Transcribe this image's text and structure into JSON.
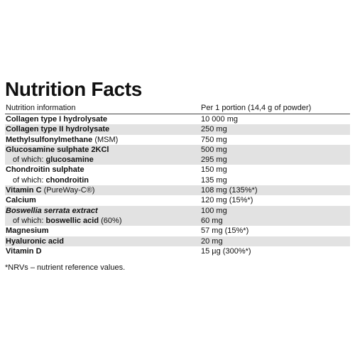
{
  "title": "Nutrition Facts",
  "header": [
    "Nutrition information",
    "Per 1 portion (14,4 g of powder)"
  ],
  "rows": [
    {
      "name": [
        "Collagen type I hydrolysate"
      ],
      "amount": "10 000 mg"
    },
    {
      "name": [
        "Collagen type II hydrolysate"
      ],
      "amount": "250 mg"
    },
    {
      "name": [
        "Methylsulfonylmethane",
        "(MSM)"
      ],
      "amount": "750 mg"
    },
    {
      "name": [
        "Glucosamine sulphate 2KCl"
      ],
      "amount": "500 mg"
    },
    {
      "name": [
        "of which:",
        "glucosamine"
      ],
      "amount": "295 mg"
    },
    {
      "name": [
        "Chondroitin sulphate"
      ],
      "amount": "150 mg"
    },
    {
      "name": [
        "of which:",
        "chondroitin"
      ],
      "amount": "135 mg"
    },
    {
      "name": [
        "Vitamin C",
        "(PureWay-C®)"
      ],
      "amount": "108 mg (135%*)"
    },
    {
      "name": [
        "Calcium"
      ],
      "amount": "120 mg (15%*)"
    },
    {
      "name": [
        "Boswellia serrata extract"
      ],
      "amount": "100 mg"
    },
    {
      "name": [
        "of which:",
        "boswellic acid",
        "(60%)"
      ],
      "amount": "60 mg"
    },
    {
      "name": [
        "Magnesium"
      ],
      "amount": "57 mg (15%*)"
    },
    {
      "name": [
        "Hyaluronic acid"
      ],
      "amount": "20 mg"
    },
    {
      "name": [
        "Vitamin D"
      ],
      "amount": "15 µg (300%*)"
    }
  ],
  "footnote": "*NRVs – nutrient reference values."
}
